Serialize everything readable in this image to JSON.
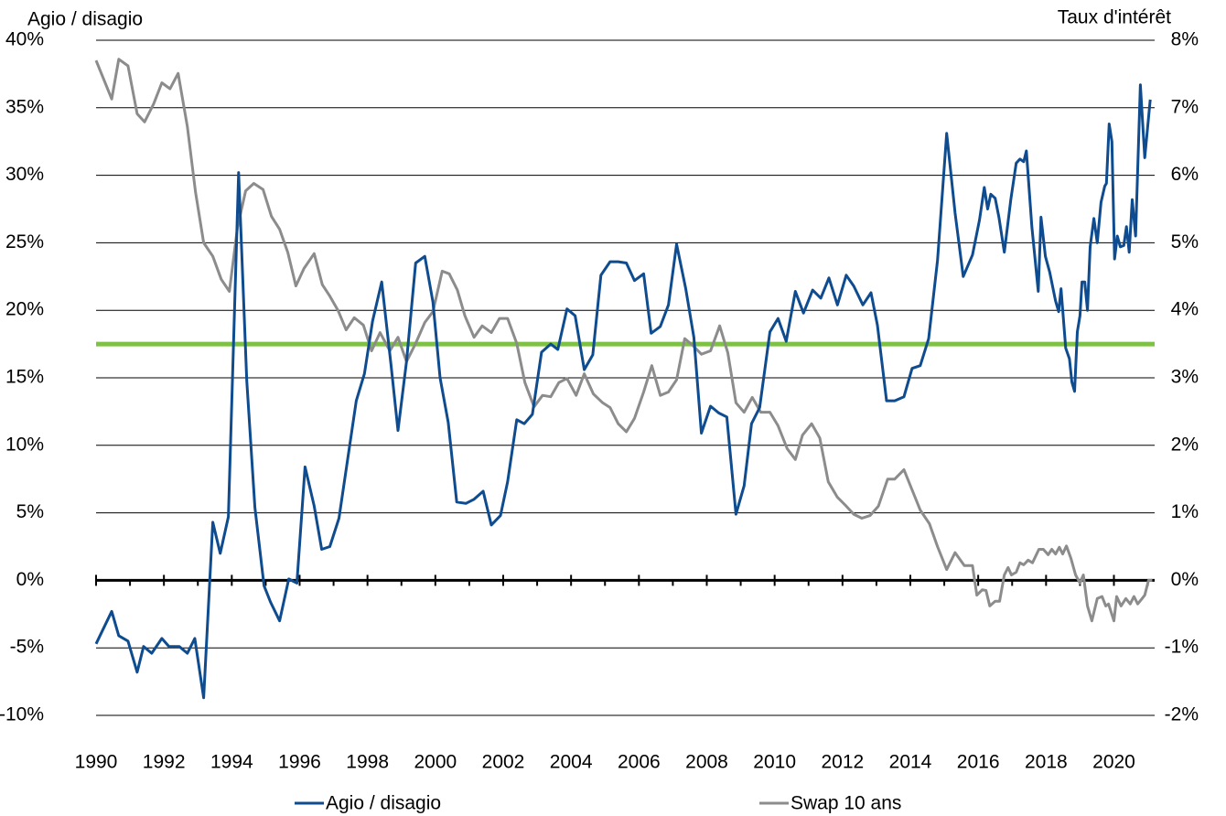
{
  "chart_data": {
    "type": "line",
    "y_label": "Agio / disagio",
    "y2_label": "Taux d'intérêt",
    "xlim": [
      1990,
      2021.2
    ],
    "xticks": [
      1990,
      1992,
      1994,
      1996,
      1998,
      2000,
      2002,
      2004,
      2006,
      2008,
      2010,
      2012,
      2014,
      2016,
      2018,
      2020
    ],
    "x_minor_ticks": [
      1991,
      1993,
      1995,
      1997,
      1999,
      2001,
      2003,
      2005,
      2007,
      2009,
      2011,
      2013,
      2015,
      2017,
      2019,
      2021
    ],
    "ylim": [
      -10,
      40
    ],
    "yticks": [
      {
        "value": -10,
        "label": "-10%"
      },
      {
        "value": -5,
        "label": "-5%"
      },
      {
        "value": 0,
        "label": "0%"
      },
      {
        "value": 5,
        "label": "5%"
      },
      {
        "value": 10,
        "label": "10%"
      },
      {
        "value": 15,
        "label": "15%"
      },
      {
        "value": 20,
        "label": "20%"
      },
      {
        "value": 25,
        "label": "25%"
      },
      {
        "value": 30,
        "label": "30%"
      },
      {
        "value": 35,
        "label": "35%"
      },
      {
        "value": 40,
        "label": "40%"
      }
    ],
    "y2lim": [
      -2,
      8
    ],
    "y2ticks": [
      {
        "value": -2,
        "label": "-2%"
      },
      {
        "value": -1,
        "label": "-1%"
      },
      {
        "value": 0,
        "label": "0%"
      },
      {
        "value": 1,
        "label": "1%"
      },
      {
        "value": 2,
        "label": "2%"
      },
      {
        "value": 3,
        "label": "3%"
      },
      {
        "value": 4,
        "label": "4%"
      },
      {
        "value": 5,
        "label": "5%"
      },
      {
        "value": 6,
        "label": "6%"
      },
      {
        "value": 7,
        "label": "7%"
      },
      {
        "value": 8,
        "label": "8%"
      }
    ],
    "grid": true,
    "reference_line": {
      "value": 17.5,
      "color": "#7dc242"
    },
    "series": [
      {
        "name": "Agio / disagio",
        "color": "#0f4c8f",
        "x": [
          1990,
          1990.46,
          1990.67,
          1990.94,
          1991.21,
          1991.4,
          1991.64,
          1991.94,
          1992.15,
          1992.45,
          1992.69,
          1992.91,
          1993.17,
          1993.44,
          1993.66,
          1993.9,
          1994.2,
          1994.44,
          1994.68,
          1994.95,
          1995.14,
          1995.41,
          1995.68,
          1995.92,
          1996.16,
          1996.43,
          1996.65,
          1996.89,
          1997.16,
          1997.4,
          1997.67,
          1997.91,
          1998.15,
          1998.42,
          1998.69,
          1998.9,
          1999.15,
          1999.42,
          1999.69,
          1999.93,
          2000.14,
          2000.38,
          2000.63,
          2000.9,
          2001.14,
          2001.41,
          2001.65,
          2001.92,
          2002.13,
          2002.4,
          2002.62,
          2002.86,
          2003.13,
          2003.4,
          2003.61,
          2003.88,
          2004.12,
          2004.39,
          2004.64,
          2004.88,
          2005.15,
          2005.39,
          2005.63,
          2005.87,
          2006.14,
          2006.36,
          2006.63,
          2006.87,
          2007.11,
          2007.38,
          2007.62,
          2007.84,
          2008.11,
          2008.35,
          2008.59,
          2008.86,
          2009.1,
          2009.32,
          2009.56,
          2009.86,
          2010.1,
          2010.34,
          2010.61,
          2010.85,
          2011.12,
          2011.36,
          2011.6,
          2011.85,
          2012.11,
          2012.33,
          2012.6,
          2012.84,
          2013.03,
          2013.3,
          2013.54,
          2013.81,
          2014.05,
          2014.29,
          2014.54,
          2014.8,
          2015.07,
          2015.32,
          2015.56,
          2015.83,
          2016.04,
          2016.18,
          2016.28,
          2016.37,
          2016.5,
          2016.61,
          2016.77,
          2016.96,
          2017.12,
          2017.23,
          2017.34,
          2017.42,
          2017.58,
          2017.77,
          2017.85,
          2017.98,
          2018.11,
          2018.28,
          2018.37,
          2018.44,
          2018.58,
          2018.69,
          2018.76,
          2018.84,
          2018.92,
          2019.0,
          2019.06,
          2019.14,
          2019.22,
          2019.3,
          2019.41,
          2019.51,
          2019.62,
          2019.73,
          2019.78,
          2019.86,
          2019.94,
          2020.02,
          2020.1,
          2020.19,
          2020.29,
          2020.37,
          2020.45,
          2020.54,
          2020.64,
          2020.78,
          2020.91,
          2021.07
        ],
        "values": [
          -4.7,
          -2.3,
          -4.1,
          -4.5,
          -6.8,
          -4.9,
          -5.4,
          -4.3,
          -4.9,
          -4.9,
          -5.4,
          -4.3,
          -8.7,
          4.3,
          2.0,
          4.7,
          30.2,
          14.8,
          5.4,
          -0.4,
          -1.6,
          -3.0,
          0.1,
          -0.2,
          8.4,
          5.5,
          2.3,
          2.5,
          4.6,
          8.7,
          13.3,
          15.3,
          19.2,
          22.1,
          16.0,
          11.1,
          16.2,
          23.5,
          24.0,
          20.6,
          15.0,
          11.7,
          5.8,
          5.7,
          6.0,
          6.6,
          4.1,
          4.8,
          7.3,
          11.9,
          11.6,
          12.3,
          16.9,
          17.5,
          17.1,
          20.1,
          19.6,
          15.6,
          16.7,
          22.6,
          23.6,
          23.6,
          23.5,
          22.2,
          22.7,
          18.3,
          18.8,
          20.4,
          24.9,
          21.6,
          18.0,
          10.9,
          12.9,
          12.4,
          12.1,
          4.9,
          7.0,
          11.6,
          12.8,
          18.4,
          19.4,
          17.7,
          21.4,
          19.8,
          21.5,
          20.9,
          22.4,
          20.4,
          22.6,
          21.8,
          20.4,
          21.3,
          18.9,
          13.3,
          13.3,
          13.6,
          15.7,
          15.9,
          17.9,
          23.7,
          33.1,
          27.2,
          22.5,
          24.1,
          26.7,
          29.1,
          27.5,
          28.6,
          28.3,
          26.9,
          24.3,
          28.2,
          30.9,
          31.2,
          31.0,
          31.8,
          26.2,
          21.4,
          26.9,
          24.0,
          22.8,
          20.7,
          19.9,
          21.6,
          17.2,
          16.4,
          14.7,
          14.0,
          18.4,
          19.6,
          22.1,
          22.1,
          20.0,
          24.7,
          26.8,
          25.0,
          28.0,
          29.2,
          29.4,
          33.8,
          32.5,
          23.8,
          25.5,
          24.7,
          24.8,
          26.2,
          24.3,
          28.2,
          25.5,
          36.7,
          31.3,
          35.6
        ]
      },
      {
        "name": "Swap 10 ans",
        "color": "#8c8c8c",
        "axis": "y2",
        "x": [
          1990,
          1990.46,
          1990.67,
          1990.94,
          1991.21,
          1991.43,
          1991.7,
          1991.94,
          1992.18,
          1992.42,
          1992.69,
          1992.93,
          1993.17,
          1993.44,
          1993.69,
          1993.93,
          1994.17,
          1994.41,
          1994.65,
          1994.92,
          1995.17,
          1995.41,
          1995.65,
          1995.89,
          1996.13,
          1996.43,
          1996.67,
          1996.89,
          1997.13,
          1997.37,
          1997.61,
          1997.88,
          1998.12,
          1998.37,
          1998.66,
          1998.9,
          1999.15,
          1999.42,
          1999.69,
          1999.93,
          2000.2,
          2000.41,
          2000.65,
          2000.87,
          2001.14,
          2001.38,
          2001.65,
          2001.89,
          2002.13,
          2002.4,
          2002.64,
          2002.91,
          2003.16,
          2003.4,
          2003.64,
          2003.88,
          2004.15,
          2004.39,
          2004.66,
          2004.93,
          2005.15,
          2005.39,
          2005.63,
          2005.87,
          2006.14,
          2006.38,
          2006.63,
          2006.87,
          2007.11,
          2007.35,
          2007.59,
          2007.84,
          2008.11,
          2008.38,
          2008.62,
          2008.86,
          2009.1,
          2009.34,
          2009.59,
          2009.86,
          2010.1,
          2010.37,
          2010.61,
          2010.82,
          2011.09,
          2011.33,
          2011.58,
          2011.85,
          2012.09,
          2012.33,
          2012.57,
          2012.81,
          2013.06,
          2013.33,
          2013.54,
          2013.81,
          2014.05,
          2014.29,
          2014.56,
          2014.8,
          2015.07,
          2015.32,
          2015.59,
          2015.83,
          2015.96,
          2016.12,
          2016.23,
          2016.34,
          2016.5,
          2016.63,
          2016.77,
          2016.88,
          2016.98,
          2017.12,
          2017.23,
          2017.34,
          2017.47,
          2017.6,
          2017.79,
          2017.92,
          2018.06,
          2018.17,
          2018.28,
          2018.39,
          2018.49,
          2018.6,
          2018.73,
          2018.87,
          2019.0,
          2019.1,
          2019.22,
          2019.35,
          2019.51,
          2019.65,
          2019.76,
          2019.84,
          2020.0,
          2020.08,
          2020.21,
          2020.35,
          2020.48,
          2020.59,
          2020.7,
          2020.83,
          2020.91,
          2021.02,
          2021.13
        ],
        "values": [
          7.7,
          7.13,
          7.72,
          7.62,
          6.91,
          6.79,
          7.06,
          7.37,
          7.28,
          7.51,
          6.72,
          5.75,
          5.0,
          4.8,
          4.46,
          4.28,
          5.23,
          5.77,
          5.88,
          5.79,
          5.39,
          5.2,
          4.86,
          4.36,
          4.62,
          4.84,
          4.38,
          4.21,
          4.0,
          3.71,
          3.89,
          3.78,
          3.4,
          3.67,
          3.4,
          3.6,
          3.24,
          3.51,
          3.82,
          3.98,
          4.58,
          4.54,
          4.3,
          3.92,
          3.6,
          3.77,
          3.67,
          3.88,
          3.88,
          3.51,
          2.93,
          2.57,
          2.74,
          2.72,
          2.93,
          2.99,
          2.74,
          3.06,
          2.76,
          2.63,
          2.56,
          2.32,
          2.2,
          2.4,
          2.79,
          3.18,
          2.74,
          2.79,
          2.97,
          3.58,
          3.48,
          3.35,
          3.4,
          3.77,
          3.37,
          2.63,
          2.49,
          2.71,
          2.49,
          2.49,
          2.29,
          1.95,
          1.79,
          2.15,
          2.32,
          2.11,
          1.46,
          1.23,
          1.11,
          0.98,
          0.92,
          0.96,
          1.1,
          1.5,
          1.5,
          1.64,
          1.34,
          1.04,
          0.84,
          0.5,
          0.16,
          0.41,
          0.22,
          0.22,
          -0.22,
          -0.14,
          -0.15,
          -0.38,
          -0.31,
          -0.31,
          0.08,
          0.19,
          0.08,
          0.12,
          0.26,
          0.23,
          0.3,
          0.26,
          0.46,
          0.46,
          0.38,
          0.46,
          0.39,
          0.49,
          0.39,
          0.51,
          0.33,
          0.08,
          -0.04,
          0.08,
          -0.38,
          -0.6,
          -0.27,
          -0.24,
          -0.38,
          -0.35,
          -0.6,
          -0.24,
          -0.38,
          -0.27,
          -0.35,
          -0.24,
          -0.35,
          -0.27,
          -0.22,
          0.0,
          0.0
        ]
      }
    ]
  }
}
